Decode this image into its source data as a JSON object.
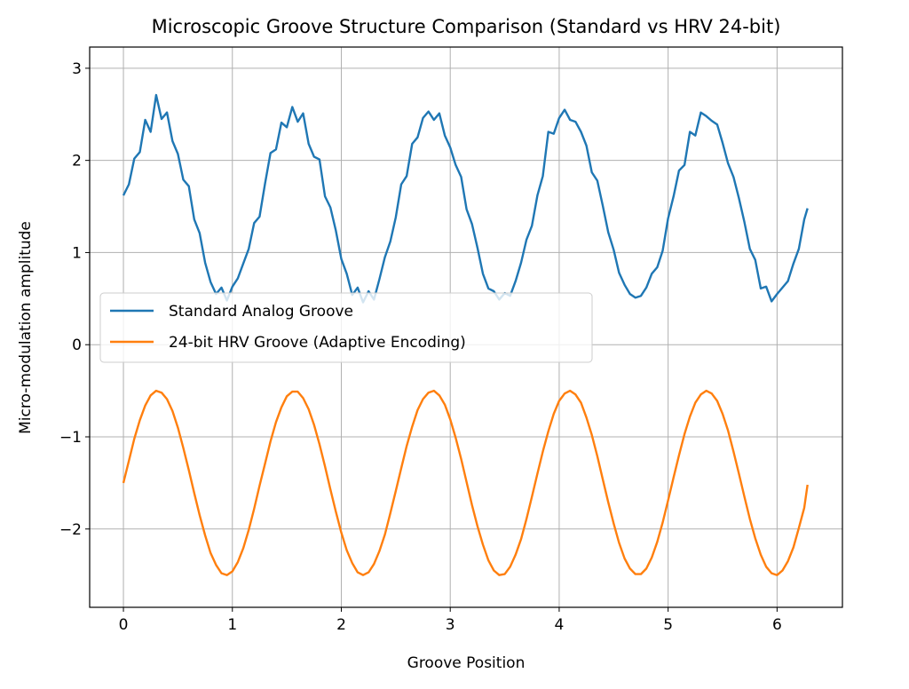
{
  "chart_data": {
    "type": "line",
    "title": "Microscopic Groove Structure Comparison (Standard vs HRV 24-bit)",
    "xlabel": "Groove Position",
    "ylabel": "Micro-modulation amplitude",
    "xlim": [
      -0.31,
      6.6
    ],
    "ylim": [
      -2.85,
      3.23
    ],
    "xticks": [
      0,
      1,
      2,
      3,
      4,
      5,
      6
    ],
    "xtick_labels": [
      "0",
      "1",
      "2",
      "3",
      "4",
      "5",
      "6"
    ],
    "yticks": [
      -2,
      -1,
      0,
      1,
      2,
      3
    ],
    "ytick_labels": [
      "−2",
      "−1",
      "0",
      "1",
      "2",
      "3"
    ],
    "grid": true,
    "legend_position": "center-left",
    "x": [
      0,
      0.05,
      0.1,
      0.15,
      0.2,
      0.25,
      0.3,
      0.35,
      0.4,
      0.45,
      0.5,
      0.55,
      0.6,
      0.65,
      0.7,
      0.75,
      0.8,
      0.85,
      0.9,
      0.95,
      1.0,
      1.05,
      1.1,
      1.15,
      1.2,
      1.25,
      1.3,
      1.35,
      1.4,
      1.45,
      1.5,
      1.55,
      1.6,
      1.65,
      1.7,
      1.75,
      1.8,
      1.85,
      1.9,
      1.95,
      2.0,
      2.05,
      2.1,
      2.15,
      2.2,
      2.25,
      2.3,
      2.35,
      2.4,
      2.45,
      2.5,
      2.55,
      2.6,
      2.65,
      2.7,
      2.75,
      2.8,
      2.85,
      2.9,
      2.95,
      3.0,
      3.05,
      3.1,
      3.15,
      3.2,
      3.25,
      3.3,
      3.35,
      3.4,
      3.45,
      3.5,
      3.55,
      3.6,
      3.65,
      3.7,
      3.75,
      3.8,
      3.85,
      3.9,
      3.95,
      4.0,
      4.05,
      4.1,
      4.15,
      4.2,
      4.25,
      4.3,
      4.35,
      4.4,
      4.45,
      4.5,
      4.55,
      4.6,
      4.65,
      4.7,
      4.75,
      4.8,
      4.85,
      4.9,
      4.95,
      5.0,
      5.05,
      5.1,
      5.15,
      5.2,
      5.25,
      5.3,
      5.35,
      5.4,
      5.45,
      5.5,
      5.55,
      5.6,
      5.65,
      5.7,
      5.75,
      5.8,
      5.85,
      5.9,
      5.95,
      6.0,
      6.05,
      6.1,
      6.15,
      6.2,
      6.25,
      6.28
    ],
    "series": [
      {
        "name": "Standard Analog Groove",
        "color": "#1f77b4",
        "y": [
          1.62,
          1.74,
          2.02,
          2.09,
          2.44,
          2.31,
          2.71,
          2.45,
          2.52,
          2.21,
          2.07,
          1.79,
          1.72,
          1.36,
          1.21,
          0.89,
          0.68,
          0.55,
          0.62,
          0.48,
          0.63,
          0.72,
          0.88,
          1.04,
          1.32,
          1.39,
          1.75,
          2.08,
          2.12,
          2.41,
          2.36,
          2.58,
          2.42,
          2.51,
          2.18,
          2.04,
          2.01,
          1.61,
          1.49,
          1.24,
          0.93,
          0.77,
          0.54,
          0.62,
          0.46,
          0.58,
          0.49,
          0.71,
          0.95,
          1.12,
          1.38,
          1.74,
          1.83,
          2.18,
          2.25,
          2.46,
          2.53,
          2.44,
          2.51,
          2.27,
          2.14,
          1.95,
          1.82,
          1.47,
          1.31,
          1.05,
          0.77,
          0.61,
          0.58,
          0.49,
          0.56,
          0.53,
          0.69,
          0.89,
          1.14,
          1.29,
          1.62,
          1.83,
          2.31,
          2.29,
          2.46,
          2.55,
          2.44,
          2.42,
          2.31,
          2.16,
          1.87,
          1.78,
          1.51,
          1.22,
          1.03,
          0.78,
          0.65,
          0.55,
          0.51,
          0.53,
          0.62,
          0.77,
          0.84,
          1.02,
          1.37,
          1.61,
          1.89,
          1.95,
          2.31,
          2.27,
          2.52,
          2.48,
          2.43,
          2.39,
          2.19,
          1.97,
          1.82,
          1.59,
          1.33,
          1.04,
          0.92,
          0.61,
          0.63,
          0.47,
          0.55,
          0.62,
          0.69,
          0.88,
          1.04,
          1.36,
          1.48
        ]
      },
      {
        "name": "24-bit HRV Groove (Adaptive Encoding)",
        "color": "#ff7f0e",
        "y": [
          -1.5,
          -1.26,
          -1.02,
          -0.82,
          -0.66,
          -0.55,
          -0.5,
          -0.52,
          -0.59,
          -0.72,
          -0.9,
          -1.12,
          -1.36,
          -1.61,
          -1.85,
          -2.07,
          -2.26,
          -2.39,
          -2.48,
          -2.5,
          -2.46,
          -2.36,
          -2.21,
          -2.01,
          -1.78,
          -1.53,
          -1.29,
          -1.05,
          -0.84,
          -0.68,
          -0.56,
          -0.51,
          -0.51,
          -0.58,
          -0.7,
          -0.87,
          -1.08,
          -1.32,
          -1.57,
          -1.81,
          -2.04,
          -2.23,
          -2.37,
          -2.47,
          -2.5,
          -2.47,
          -2.38,
          -2.24,
          -2.06,
          -1.83,
          -1.59,
          -1.34,
          -1.1,
          -0.89,
          -0.71,
          -0.59,
          -0.52,
          -0.5,
          -0.55,
          -0.65,
          -0.81,
          -1.01,
          -1.24,
          -1.49,
          -1.74,
          -1.97,
          -2.17,
          -2.34,
          -2.45,
          -2.5,
          -2.49,
          -2.41,
          -2.28,
          -2.11,
          -1.89,
          -1.65,
          -1.4,
          -1.16,
          -0.94,
          -0.75,
          -0.61,
          -0.53,
          -0.5,
          -0.54,
          -0.63,
          -0.79,
          -0.98,
          -1.21,
          -1.46,
          -1.71,
          -1.94,
          -2.15,
          -2.32,
          -2.43,
          -2.49,
          -2.49,
          -2.43,
          -2.31,
          -2.14,
          -1.93,
          -1.69,
          -1.44,
          -1.2,
          -0.97,
          -0.78,
          -0.63,
          -0.54,
          -0.5,
          -0.53,
          -0.61,
          -0.75,
          -0.93,
          -1.16,
          -1.4,
          -1.65,
          -1.89,
          -2.1,
          -2.28,
          -2.41,
          -2.48,
          -2.5,
          -2.45,
          -2.35,
          -2.2,
          -1.99,
          -1.77,
          -1.52
        ]
      }
    ]
  }
}
